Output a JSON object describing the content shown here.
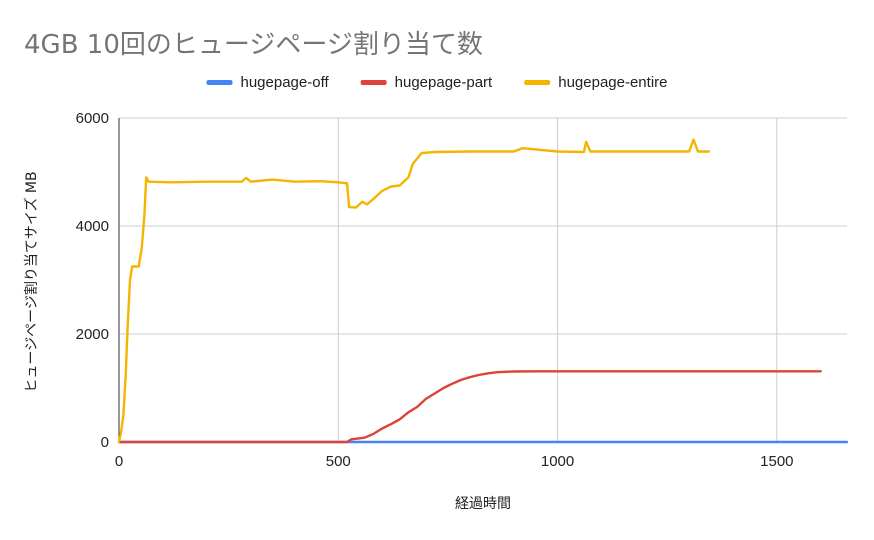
{
  "chart_data": {
    "type": "line",
    "title": "4GB 10回のヒュージページ割り当て数",
    "xlabel": "経過時間",
    "ylabel": "ヒュージページ割り当てサイズ MB",
    "xlim": [
      0,
      1660
    ],
    "ylim": [
      0,
      6000
    ],
    "x_ticks": [
      "0",
      "500",
      "1000",
      "1500"
    ],
    "y_ticks": [
      "0",
      "2000",
      "4000",
      "6000"
    ],
    "grid": true,
    "legend": "top",
    "series": [
      {
        "name": "hugepage-off",
        "color": "#4285f4",
        "points": [
          [
            0,
            0
          ],
          [
            1660,
            0
          ]
        ]
      },
      {
        "name": "hugepage-part",
        "color": "#db4437",
        "points": [
          [
            0,
            0
          ],
          [
            520,
            0
          ],
          [
            530,
            50
          ],
          [
            560,
            80
          ],
          [
            580,
            150
          ],
          [
            600,
            250
          ],
          [
            620,
            330
          ],
          [
            640,
            420
          ],
          [
            660,
            550
          ],
          [
            680,
            650
          ],
          [
            700,
            800
          ],
          [
            720,
            900
          ],
          [
            740,
            1000
          ],
          [
            760,
            1080
          ],
          [
            780,
            1150
          ],
          [
            800,
            1200
          ],
          [
            820,
            1240
          ],
          [
            840,
            1270
          ],
          [
            860,
            1290
          ],
          [
            880,
            1300
          ],
          [
            900,
            1305
          ],
          [
            950,
            1310
          ],
          [
            1600,
            1310
          ]
        ]
      },
      {
        "name": "hugepage-entire",
        "color": "#f4b400",
        "points": [
          [
            0,
            0
          ],
          [
            5,
            200
          ],
          [
            10,
            500
          ],
          [
            15,
            1200
          ],
          [
            20,
            2200
          ],
          [
            25,
            3000
          ],
          [
            30,
            3250
          ],
          [
            45,
            3250
          ],
          [
            52,
            3600
          ],
          [
            58,
            4200
          ],
          [
            62,
            4900
          ],
          [
            68,
            4820
          ],
          [
            120,
            4810
          ],
          [
            200,
            4820
          ],
          [
            280,
            4820
          ],
          [
            290,
            4890
          ],
          [
            300,
            4820
          ],
          [
            350,
            4860
          ],
          [
            400,
            4820
          ],
          [
            460,
            4830
          ],
          [
            500,
            4810
          ],
          [
            520,
            4790
          ],
          [
            525,
            4350
          ],
          [
            540,
            4340
          ],
          [
            555,
            4450
          ],
          [
            565,
            4400
          ],
          [
            580,
            4500
          ],
          [
            600,
            4650
          ],
          [
            620,
            4730
          ],
          [
            640,
            4750
          ],
          [
            660,
            4900
          ],
          [
            670,
            5150
          ],
          [
            690,
            5350
          ],
          [
            720,
            5370
          ],
          [
            800,
            5380
          ],
          [
            900,
            5380
          ],
          [
            920,
            5440
          ],
          [
            1000,
            5380
          ],
          [
            1060,
            5370
          ],
          [
            1065,
            5560
          ],
          [
            1075,
            5380
          ],
          [
            1200,
            5380
          ],
          [
            1300,
            5380
          ],
          [
            1310,
            5600
          ],
          [
            1320,
            5380
          ],
          [
            1345,
            5380
          ]
        ]
      }
    ]
  }
}
